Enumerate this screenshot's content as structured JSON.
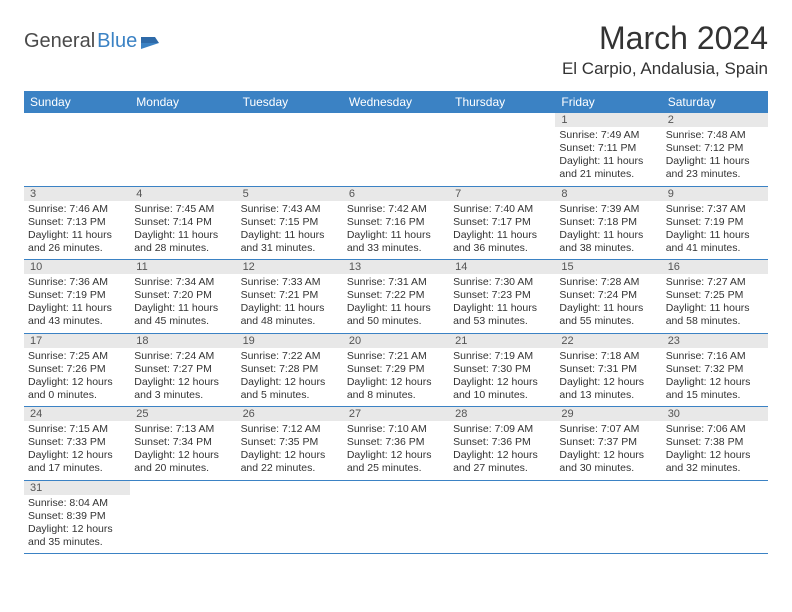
{
  "logo": {
    "part1": "General",
    "part2": "Blue"
  },
  "title": "March 2024",
  "location": "El Carpio, Andalusia, Spain",
  "colors": {
    "header_bg": "#3b82c4",
    "daynum_bg": "#e8e8e8",
    "border": "#3b82c4",
    "text": "#333333"
  },
  "dayNames": [
    "Sunday",
    "Monday",
    "Tuesday",
    "Wednesday",
    "Thursday",
    "Friday",
    "Saturday"
  ],
  "weeks": [
    [
      null,
      null,
      null,
      null,
      null,
      {
        "n": "1",
        "sr": "Sunrise: 7:49 AM",
        "ss": "Sunset: 7:11 PM",
        "d1": "Daylight: 11 hours",
        "d2": "and 21 minutes."
      },
      {
        "n": "2",
        "sr": "Sunrise: 7:48 AM",
        "ss": "Sunset: 7:12 PM",
        "d1": "Daylight: 11 hours",
        "d2": "and 23 minutes."
      }
    ],
    [
      {
        "n": "3",
        "sr": "Sunrise: 7:46 AM",
        "ss": "Sunset: 7:13 PM",
        "d1": "Daylight: 11 hours",
        "d2": "and 26 minutes."
      },
      {
        "n": "4",
        "sr": "Sunrise: 7:45 AM",
        "ss": "Sunset: 7:14 PM",
        "d1": "Daylight: 11 hours",
        "d2": "and 28 minutes."
      },
      {
        "n": "5",
        "sr": "Sunrise: 7:43 AM",
        "ss": "Sunset: 7:15 PM",
        "d1": "Daylight: 11 hours",
        "d2": "and 31 minutes."
      },
      {
        "n": "6",
        "sr": "Sunrise: 7:42 AM",
        "ss": "Sunset: 7:16 PM",
        "d1": "Daylight: 11 hours",
        "d2": "and 33 minutes."
      },
      {
        "n": "7",
        "sr": "Sunrise: 7:40 AM",
        "ss": "Sunset: 7:17 PM",
        "d1": "Daylight: 11 hours",
        "d2": "and 36 minutes."
      },
      {
        "n": "8",
        "sr": "Sunrise: 7:39 AM",
        "ss": "Sunset: 7:18 PM",
        "d1": "Daylight: 11 hours",
        "d2": "and 38 minutes."
      },
      {
        "n": "9",
        "sr": "Sunrise: 7:37 AM",
        "ss": "Sunset: 7:19 PM",
        "d1": "Daylight: 11 hours",
        "d2": "and 41 minutes."
      }
    ],
    [
      {
        "n": "10",
        "sr": "Sunrise: 7:36 AM",
        "ss": "Sunset: 7:19 PM",
        "d1": "Daylight: 11 hours",
        "d2": "and 43 minutes."
      },
      {
        "n": "11",
        "sr": "Sunrise: 7:34 AM",
        "ss": "Sunset: 7:20 PM",
        "d1": "Daylight: 11 hours",
        "d2": "and 45 minutes."
      },
      {
        "n": "12",
        "sr": "Sunrise: 7:33 AM",
        "ss": "Sunset: 7:21 PM",
        "d1": "Daylight: 11 hours",
        "d2": "and 48 minutes."
      },
      {
        "n": "13",
        "sr": "Sunrise: 7:31 AM",
        "ss": "Sunset: 7:22 PM",
        "d1": "Daylight: 11 hours",
        "d2": "and 50 minutes."
      },
      {
        "n": "14",
        "sr": "Sunrise: 7:30 AM",
        "ss": "Sunset: 7:23 PM",
        "d1": "Daylight: 11 hours",
        "d2": "and 53 minutes."
      },
      {
        "n": "15",
        "sr": "Sunrise: 7:28 AM",
        "ss": "Sunset: 7:24 PM",
        "d1": "Daylight: 11 hours",
        "d2": "and 55 minutes."
      },
      {
        "n": "16",
        "sr": "Sunrise: 7:27 AM",
        "ss": "Sunset: 7:25 PM",
        "d1": "Daylight: 11 hours",
        "d2": "and 58 minutes."
      }
    ],
    [
      {
        "n": "17",
        "sr": "Sunrise: 7:25 AM",
        "ss": "Sunset: 7:26 PM",
        "d1": "Daylight: 12 hours",
        "d2": "and 0 minutes."
      },
      {
        "n": "18",
        "sr": "Sunrise: 7:24 AM",
        "ss": "Sunset: 7:27 PM",
        "d1": "Daylight: 12 hours",
        "d2": "and 3 minutes."
      },
      {
        "n": "19",
        "sr": "Sunrise: 7:22 AM",
        "ss": "Sunset: 7:28 PM",
        "d1": "Daylight: 12 hours",
        "d2": "and 5 minutes."
      },
      {
        "n": "20",
        "sr": "Sunrise: 7:21 AM",
        "ss": "Sunset: 7:29 PM",
        "d1": "Daylight: 12 hours",
        "d2": "and 8 minutes."
      },
      {
        "n": "21",
        "sr": "Sunrise: 7:19 AM",
        "ss": "Sunset: 7:30 PM",
        "d1": "Daylight: 12 hours",
        "d2": "and 10 minutes."
      },
      {
        "n": "22",
        "sr": "Sunrise: 7:18 AM",
        "ss": "Sunset: 7:31 PM",
        "d1": "Daylight: 12 hours",
        "d2": "and 13 minutes."
      },
      {
        "n": "23",
        "sr": "Sunrise: 7:16 AM",
        "ss": "Sunset: 7:32 PM",
        "d1": "Daylight: 12 hours",
        "d2": "and 15 minutes."
      }
    ],
    [
      {
        "n": "24",
        "sr": "Sunrise: 7:15 AM",
        "ss": "Sunset: 7:33 PM",
        "d1": "Daylight: 12 hours",
        "d2": "and 17 minutes."
      },
      {
        "n": "25",
        "sr": "Sunrise: 7:13 AM",
        "ss": "Sunset: 7:34 PM",
        "d1": "Daylight: 12 hours",
        "d2": "and 20 minutes."
      },
      {
        "n": "26",
        "sr": "Sunrise: 7:12 AM",
        "ss": "Sunset: 7:35 PM",
        "d1": "Daylight: 12 hours",
        "d2": "and 22 minutes."
      },
      {
        "n": "27",
        "sr": "Sunrise: 7:10 AM",
        "ss": "Sunset: 7:36 PM",
        "d1": "Daylight: 12 hours",
        "d2": "and 25 minutes."
      },
      {
        "n": "28",
        "sr": "Sunrise: 7:09 AM",
        "ss": "Sunset: 7:36 PM",
        "d1": "Daylight: 12 hours",
        "d2": "and 27 minutes."
      },
      {
        "n": "29",
        "sr": "Sunrise: 7:07 AM",
        "ss": "Sunset: 7:37 PM",
        "d1": "Daylight: 12 hours",
        "d2": "and 30 minutes."
      },
      {
        "n": "30",
        "sr": "Sunrise: 7:06 AM",
        "ss": "Sunset: 7:38 PM",
        "d1": "Daylight: 12 hours",
        "d2": "and 32 minutes."
      }
    ],
    [
      {
        "n": "31",
        "sr": "Sunrise: 8:04 AM",
        "ss": "Sunset: 8:39 PM",
        "d1": "Daylight: 12 hours",
        "d2": "and 35 minutes."
      },
      null,
      null,
      null,
      null,
      null,
      null
    ]
  ]
}
